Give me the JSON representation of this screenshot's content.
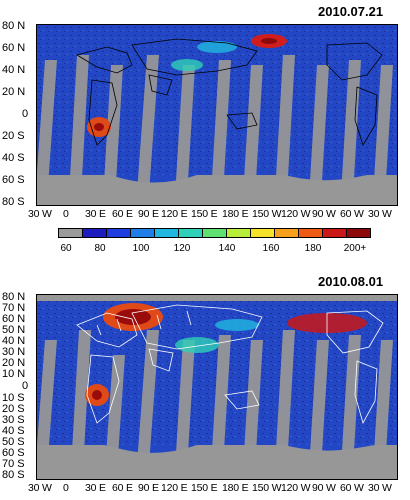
{
  "panels": [
    {
      "date": "2010.07.21",
      "lat_labels": [
        "80 N",
        "60 N",
        "40 N",
        "20 N",
        "0",
        "20 S",
        "40 S",
        "60 S",
        "80 S"
      ],
      "lon_labels": [
        "30 W",
        "0",
        "30 E",
        "60 E",
        "90 E",
        "120 E",
        "150 E",
        "180 E",
        "150 W",
        "120 W",
        "90 W",
        "60 W",
        "30 W"
      ],
      "land_outline_color": "#000000"
    },
    {
      "date": "2010.08.01",
      "lat_labels": [
        "80 N",
        "70 N",
        "60 N",
        "50 N",
        "40 N",
        "30 N",
        "20 N",
        "10 N",
        "0",
        "10 S",
        "20 S",
        "30 S",
        "40 S",
        "50 S",
        "60 S",
        "70 S",
        "80 S"
      ],
      "lon_labels": [
        "30 W",
        "0",
        "30 E",
        "60 E",
        "90 E",
        "120 E",
        "150 E",
        "180 E",
        "150 W",
        "120 W",
        "90 W",
        "60 W",
        "30 W"
      ],
      "land_outline_color": "#ffffff"
    }
  ],
  "colorbar": {
    "ticks": [
      "60",
      "80",
      "100",
      "120",
      "140",
      "160",
      "180",
      "200+"
    ],
    "colors": [
      "#9a9a9a",
      "#1d1dbf",
      "#1f3ee0",
      "#1f7ee8",
      "#20b8e0",
      "#2ed0b8",
      "#5fe070",
      "#b8ee3a",
      "#f6e22a",
      "#f7a01c",
      "#ef5a14",
      "#c81818",
      "#8c0a0a"
    ]
  },
  "colors": {
    "ocean": "#1e3fb5",
    "nodata_gray": "#979797"
  }
}
